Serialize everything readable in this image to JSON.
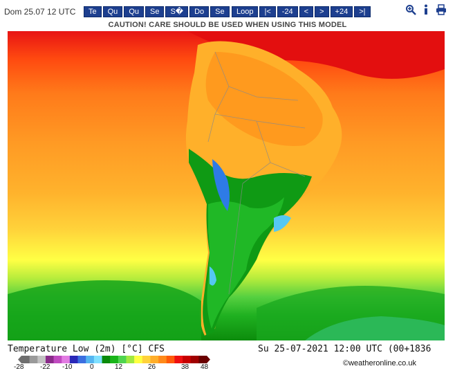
{
  "header": {
    "date_label": "Dom 25.07 12 UTC",
    "days": [
      "Te",
      "Qu",
      "Qu",
      "Se",
      "S\u0000",
      "Do",
      "Se"
    ],
    "nav": [
      "Loop",
      "|<",
      "-24",
      "<",
      ">",
      "+24",
      ">|"
    ],
    "icons": [
      "zoom-icon",
      "info-icon",
      "print-icon"
    ]
  },
  "caution": "CAUTION! CARE SHOULD BE USED WHEN USING THIS MODEL",
  "legend": {
    "title": "Temperature Low (2m) [°C] CFS",
    "date": "Su 25-07-2021 12:00 UTC (00+1836",
    "ticks": [
      "-28",
      "-22",
      "-10",
      "0",
      "12",
      "26",
      "38",
      "48"
    ],
    "colors": [
      "#6e6e6e",
      "#9a9a9a",
      "#c2c2c2",
      "#8a2b8a",
      "#c04ac0",
      "#e27be2",
      "#2a28b8",
      "#3b6fe0",
      "#55b5f0",
      "#7fe0ff",
      "#0a8a0a",
      "#19b519",
      "#4fd44f",
      "#a0e840",
      "#ffff40",
      "#ffd23a",
      "#ffae2a",
      "#ff8a1a",
      "#ff5a0a",
      "#ee1010",
      "#c80000",
      "#a00000",
      "#6a0000"
    ]
  },
  "credit": "©weatheronline.co.uk"
}
